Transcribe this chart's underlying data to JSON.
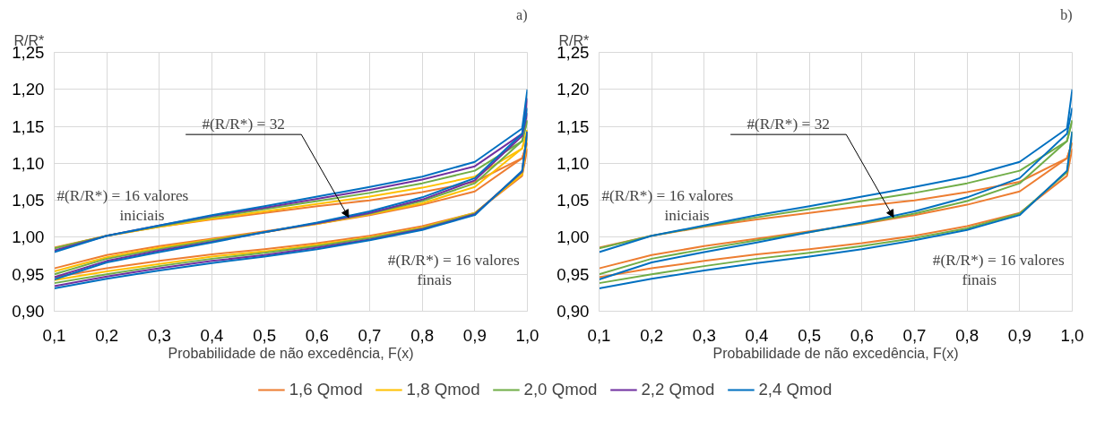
{
  "chart_data": [
    {
      "type": "line",
      "title": "a)",
      "ylabel": "R/R*",
      "xlabel": "Probabilidade de não excedência, F(x)",
      "x": [
        0.1,
        0.2,
        0.3,
        0.4,
        0.5,
        0.6,
        0.7,
        0.8,
        0.9,
        0.99,
        1.0
      ],
      "xlim": [
        0.1,
        1.0
      ],
      "xticks": [
        {
          "value": 0.1,
          "label": "0,1"
        },
        {
          "value": 0.2,
          "label": "0,2"
        },
        {
          "value": 0.3,
          "label": "0,3"
        },
        {
          "value": 0.4,
          "label": "0,4"
        },
        {
          "value": 0.5,
          "label": "0,5"
        },
        {
          "value": 0.6,
          "label": "0,6"
        },
        {
          "value": 0.7,
          "label": "0,7"
        },
        {
          "value": 0.8,
          "label": "0,8"
        },
        {
          "value": 0.9,
          "label": "0,9"
        },
        {
          "value": 1.0,
          "label": "1,0"
        }
      ],
      "ylim": [
        0.9,
        1.25
      ],
      "yticks": [
        {
          "value": 0.9,
          "label": "0,90"
        },
        {
          "value": 0.95,
          "label": "0,95"
        },
        {
          "value": 1.0,
          "label": "1,00"
        },
        {
          "value": 1.05,
          "label": "1,05"
        },
        {
          "value": 1.1,
          "label": "1,10"
        },
        {
          "value": 1.15,
          "label": "1,15"
        },
        {
          "value": 1.2,
          "label": "1,20"
        },
        {
          "value": 1.25,
          "label": "1,25"
        }
      ],
      "grid": true,
      "legend": "bottom",
      "marker": "none",
      "line_style": "solid",
      "annotations": [
        {
          "text": "#(R/R*) = 32",
          "x": 0.66,
          "y": 1.027
        },
        "#(R/R*) = 16 valores\niniciais",
        "#(R/R*) = 16 valores\nfinais"
      ],
      "series": [
        {
          "name": "1,6 Qmod",
          "color": "#ed7d31",
          "values": [
            0.986,
            1.002,
            1.014,
            1.024,
            1.033,
            1.042,
            1.05,
            1.061,
            1.075,
            1.107,
            1.128
          ]
        },
        {
          "color": "#ed7d31",
          "values": [
            0.958,
            0.976,
            0.988,
            0.998,
            1.008,
            1.018,
            1.03,
            1.044,
            1.062,
            1.107,
            1.128
          ]
        },
        {
          "color": "#ed7d31",
          "values": [
            0.946,
            0.958,
            0.968,
            0.977,
            0.984,
            0.992,
            1.002,
            1.015,
            1.033,
            1.083,
            1.12
          ]
        },
        {
          "name": "1,8 Qmod",
          "color": "#ffc000",
          "values": [
            0.985,
            1.002,
            1.014,
            1.025,
            1.035,
            1.045,
            1.055,
            1.067,
            1.082,
            1.12,
            1.145
          ]
        },
        {
          "color": "#ffc000",
          "values": [
            0.954,
            0.973,
            0.986,
            0.997,
            1.007,
            1.018,
            1.031,
            1.046,
            1.068,
            1.12,
            1.145
          ]
        },
        {
          "color": "#ffc000",
          "values": [
            0.942,
            0.954,
            0.964,
            0.974,
            0.981,
            0.99,
            1.0,
            1.013,
            1.033,
            1.085,
            1.135
          ]
        },
        {
          "name": "2,0 Qmod",
          "color": "#70ad47",
          "values": [
            0.985,
            1.002,
            1.015,
            1.027,
            1.038,
            1.049,
            1.06,
            1.073,
            1.09,
            1.13,
            1.158
          ]
        },
        {
          "color": "#70ad47",
          "values": [
            0.95,
            0.971,
            0.984,
            0.996,
            1.007,
            1.019,
            1.032,
            1.049,
            1.073,
            1.13,
            1.158
          ]
        },
        {
          "color": "#70ad47",
          "values": [
            0.938,
            0.95,
            0.961,
            0.971,
            0.979,
            0.988,
            0.999,
            1.012,
            1.032,
            1.088,
            1.143
          ]
        },
        {
          "name": "2,2 Qmod",
          "color": "#7030a0",
          "values": [
            0.982,
            1.002,
            1.016,
            1.029,
            1.04,
            1.052,
            1.064,
            1.078,
            1.096,
            1.14,
            1.188
          ]
        },
        {
          "color": "#7030a0",
          "values": [
            0.946,
            0.968,
            0.982,
            0.994,
            1.007,
            1.019,
            1.033,
            1.051,
            1.077,
            1.137,
            1.168
          ]
        },
        {
          "color": "#7030a0",
          "values": [
            0.934,
            0.947,
            0.958,
            0.968,
            0.976,
            0.986,
            0.997,
            1.011,
            1.031,
            1.089,
            1.143
          ]
        },
        {
          "name": "2,4 Qmod",
          "color": "#0070c0",
          "values": [
            0.98,
            1.002,
            1.016,
            1.03,
            1.042,
            1.055,
            1.068,
            1.082,
            1.102,
            1.147,
            1.2
          ]
        },
        {
          "color": "#0070c0",
          "values": [
            0.943,
            0.966,
            0.98,
            0.993,
            1.007,
            1.02,
            1.035,
            1.054,
            1.08,
            1.14,
            1.175
          ]
        },
        {
          "color": "#0070c0",
          "values": [
            0.931,
            0.944,
            0.955,
            0.965,
            0.974,
            0.984,
            0.996,
            1.01,
            1.03,
            1.09,
            1.143
          ]
        }
      ]
    },
    {
      "type": "line",
      "title": "b)",
      "ylabel": "R/R*",
      "xlabel": "Probabilidade de não excedência, F(x)",
      "x": [
        0.1,
        0.2,
        0.3,
        0.4,
        0.5,
        0.6,
        0.7,
        0.8,
        0.9,
        0.99,
        1.0
      ],
      "xlim": [
        0.1,
        1.0
      ],
      "xticks": [
        {
          "value": 0.1,
          "label": "0,1"
        },
        {
          "value": 0.2,
          "label": "0,2"
        },
        {
          "value": 0.3,
          "label": "0,3"
        },
        {
          "value": 0.4,
          "label": "0,4"
        },
        {
          "value": 0.5,
          "label": "0,5"
        },
        {
          "value": 0.6,
          "label": "0,6"
        },
        {
          "value": 0.7,
          "label": "0,7"
        },
        {
          "value": 0.8,
          "label": "0,8"
        },
        {
          "value": 0.9,
          "label": "0,9"
        },
        {
          "value": 1.0,
          "label": "1,0"
        }
      ],
      "ylim": [
        0.9,
        1.25
      ],
      "yticks": [
        {
          "value": 0.9,
          "label": "0,90"
        },
        {
          "value": 0.95,
          "label": "0,95"
        },
        {
          "value": 1.0,
          "label": "1,00"
        },
        {
          "value": 1.05,
          "label": "1,05"
        },
        {
          "value": 1.1,
          "label": "1,10"
        },
        {
          "value": 1.15,
          "label": "1,15"
        },
        {
          "value": 1.2,
          "label": "1,20"
        },
        {
          "value": 1.25,
          "label": "1,25"
        }
      ],
      "grid": true,
      "marker": "none",
      "line_style": "solid",
      "annotations": [
        {
          "text": "#(R/R*) = 32",
          "x": 0.66,
          "y": 1.027
        },
        "#(R/R*) = 16 valores\niniciais",
        "#(R/R*) = 16 valores\nfinais"
      ],
      "series": [
        {
          "color": "#ed7d31",
          "values": [
            0.986,
            1.002,
            1.014,
            1.024,
            1.033,
            1.042,
            1.05,
            1.061,
            1.075,
            1.107,
            1.128
          ]
        },
        {
          "color": "#ed7d31",
          "values": [
            0.958,
            0.976,
            0.988,
            0.998,
            1.008,
            1.018,
            1.03,
            1.044,
            1.062,
            1.107,
            1.128
          ]
        },
        {
          "color": "#ed7d31",
          "values": [
            0.946,
            0.958,
            0.968,
            0.977,
            0.984,
            0.992,
            1.002,
            1.015,
            1.033,
            1.083,
            1.12
          ]
        },
        {
          "color": "#70ad47",
          "values": [
            0.985,
            1.002,
            1.015,
            1.027,
            1.038,
            1.049,
            1.06,
            1.073,
            1.09,
            1.13,
            1.158
          ]
        },
        {
          "color": "#70ad47",
          "values": [
            0.95,
            0.971,
            0.984,
            0.996,
            1.007,
            1.019,
            1.032,
            1.049,
            1.073,
            1.13,
            1.158
          ]
        },
        {
          "color": "#70ad47",
          "values": [
            0.938,
            0.95,
            0.961,
            0.971,
            0.979,
            0.988,
            0.999,
            1.012,
            1.032,
            1.088,
            1.143
          ]
        },
        {
          "color": "#0070c0",
          "values": [
            0.98,
            1.002,
            1.016,
            1.03,
            1.042,
            1.055,
            1.068,
            1.082,
            1.102,
            1.147,
            1.2
          ]
        },
        {
          "color": "#0070c0",
          "values": [
            0.943,
            0.966,
            0.98,
            0.993,
            1.007,
            1.02,
            1.035,
            1.054,
            1.08,
            1.14,
            1.175
          ]
        },
        {
          "color": "#0070c0",
          "values": [
            0.931,
            0.944,
            0.955,
            0.965,
            0.974,
            0.984,
            0.996,
            1.01,
            1.03,
            1.09,
            1.143
          ]
        }
      ]
    }
  ]
}
